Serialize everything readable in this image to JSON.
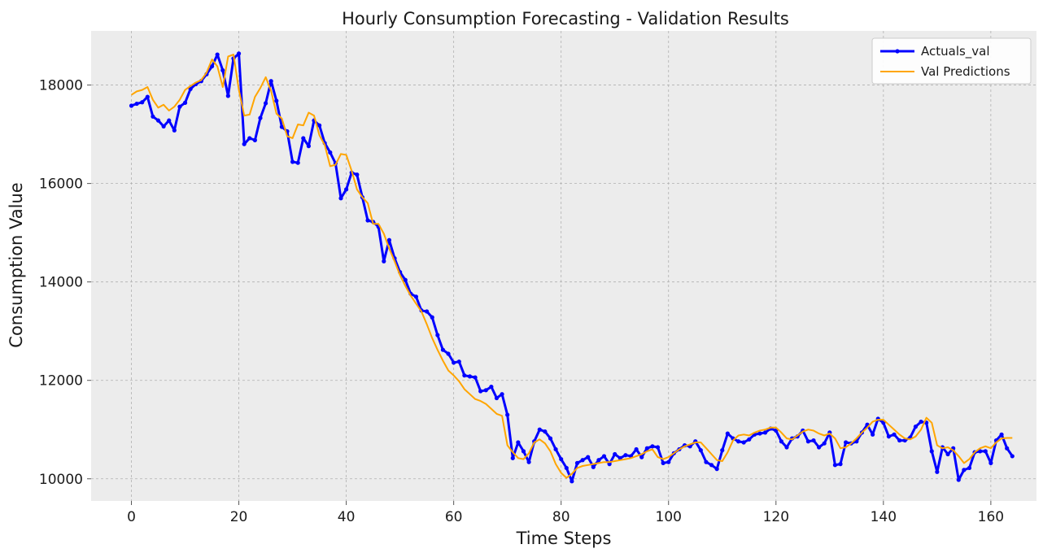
{
  "chart_data": {
    "type": "line",
    "title": "Hourly Consumption Forecasting - Validation Results",
    "xlabel": "Time Steps",
    "ylabel": "Consumption Value",
    "xlim": [
      -7.5,
      168.5
    ],
    "ylim": [
      9550,
      19100
    ],
    "xticks": [
      0,
      20,
      40,
      60,
      80,
      100,
      120,
      140,
      160
    ],
    "yticks": [
      10000,
      12000,
      14000,
      16000,
      18000
    ],
    "grid": true,
    "legend": "top-right",
    "series": [
      {
        "name": "Actuals_val",
        "color": "#0000ff",
        "marker": "dot",
        "values": [
          17580,
          17620,
          17650,
          17760,
          17360,
          17280,
          17160,
          17280,
          17080,
          17560,
          17640,
          17920,
          18020,
          18080,
          18220,
          18380,
          18620,
          18300,
          17780,
          18540,
          18640,
          16800,
          16920,
          16880,
          17330,
          17630,
          18080,
          17680,
          17150,
          17060,
          16440,
          16420,
          16920,
          16760,
          17280,
          17180,
          16820,
          16630,
          16410,
          15700,
          15880,
          16220,
          16180,
          15720,
          15250,
          15220,
          15120,
          14420,
          14850,
          14480,
          14200,
          14040,
          13760,
          13700,
          13420,
          13400,
          13280,
          12920,
          12620,
          12540,
          12360,
          12380,
          12100,
          12080,
          12060,
          11780,
          11800,
          11870,
          11640,
          11720,
          11300,
          10420,
          10740,
          10560,
          10340,
          10760,
          11000,
          10960,
          10820,
          10600,
          10400,
          10220,
          9950,
          10320,
          10380,
          10440,
          10240,
          10380,
          10460,
          10300,
          10500,
          10420,
          10480,
          10460,
          10600,
          10440,
          10620,
          10660,
          10640,
          10320,
          10340,
          10520,
          10600,
          10680,
          10660,
          10760,
          10580,
          10340,
          10280,
          10200,
          10580,
          10920,
          10820,
          10760,
          10740,
          10800,
          10900,
          10920,
          10940,
          11020,
          10980,
          10760,
          10640,
          10820,
          10860,
          10980,
          10760,
          10780,
          10640,
          10720,
          10940,
          10280,
          10300,
          10740,
          10720,
          10760,
          10940,
          11100,
          10900,
          11220,
          11140,
          10860,
          10900,
          10780,
          10780,
          10840,
          11060,
          11160,
          11140,
          10560,
          10140,
          10640,
          10500,
          10620,
          9980,
          10180,
          10220,
          10540,
          10560,
          10560,
          10320,
          10780,
          10900,
          10620,
          10460
        ]
      },
      {
        "name": "Val Predictions",
        "color": "#ffa500",
        "marker": "none",
        "values": [
          17800,
          17870,
          17900,
          17960,
          17700,
          17540,
          17600,
          17480,
          17560,
          17700,
          17900,
          17980,
          18050,
          18100,
          18250,
          18520,
          18380,
          17960,
          18580,
          18620,
          17900,
          17380,
          17400,
          17760,
          17940,
          18160,
          17880,
          17420,
          17320,
          16960,
          16920,
          17200,
          17180,
          17440,
          17380,
          16980,
          16780,
          16350,
          16380,
          16600,
          16580,
          16260,
          15880,
          15720,
          15600,
          15180,
          15180,
          14980,
          14680,
          14420,
          14140,
          13920,
          13720,
          13560,
          13400,
          13140,
          12860,
          12620,
          12400,
          12200,
          12100,
          11980,
          11820,
          11720,
          11620,
          11580,
          11520,
          11420,
          11320,
          11280,
          10680,
          10540,
          10420,
          10400,
          10520,
          10740,
          10800,
          10720,
          10560,
          10300,
          10120,
          10020,
          10100,
          10220,
          10260,
          10280,
          10300,
          10320,
          10340,
          10340,
          10360,
          10380,
          10400,
          10420,
          10460,
          10500,
          10560,
          10600,
          10440,
          10400,
          10440,
          10520,
          10600,
          10660,
          10700,
          10740,
          10740,
          10620,
          10500,
          10380,
          10360,
          10540,
          10780,
          10880,
          10900,
          10880,
          10940,
          10980,
          11000,
          11040,
          11040,
          10940,
          10820,
          10800,
          10880,
          10960,
          11000,
          10980,
          10920,
          10880,
          10920,
          10820,
          10620,
          10640,
          10720,
          10820,
          10940,
          11040,
          11160,
          11200,
          11200,
          11100,
          11000,
          10900,
          10820,
          10800,
          10860,
          11000,
          11240,
          11140,
          10680,
          10620,
          10640,
          10580,
          10460,
          10320,
          10400,
          10540,
          10620,
          10660,
          10620,
          10740,
          10820,
          10830,
          10830
        ]
      }
    ]
  }
}
